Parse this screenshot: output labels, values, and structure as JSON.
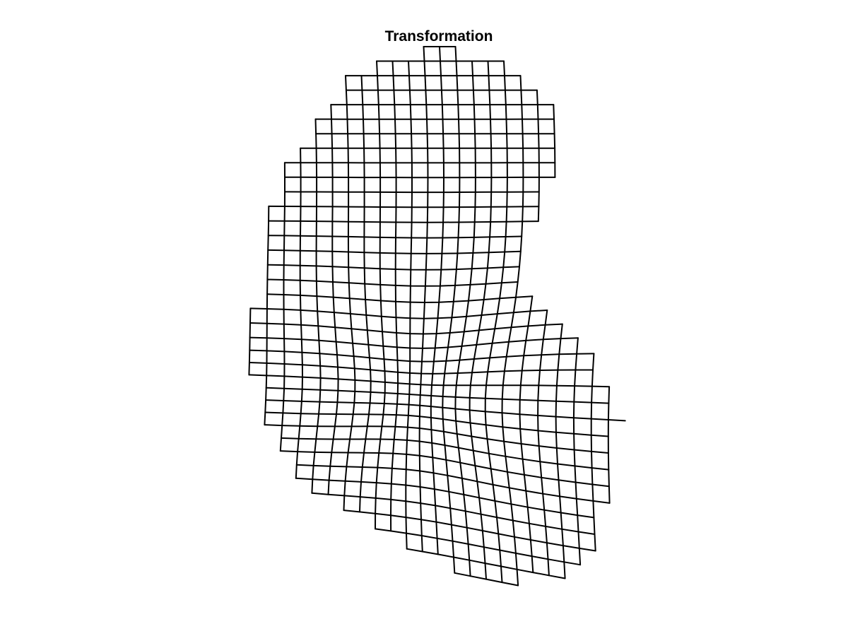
{
  "figure": {
    "title": "Transformation",
    "colors": {
      "background": "#ffffff",
      "line": "#000000",
      "title": "#000000"
    }
  }
}
